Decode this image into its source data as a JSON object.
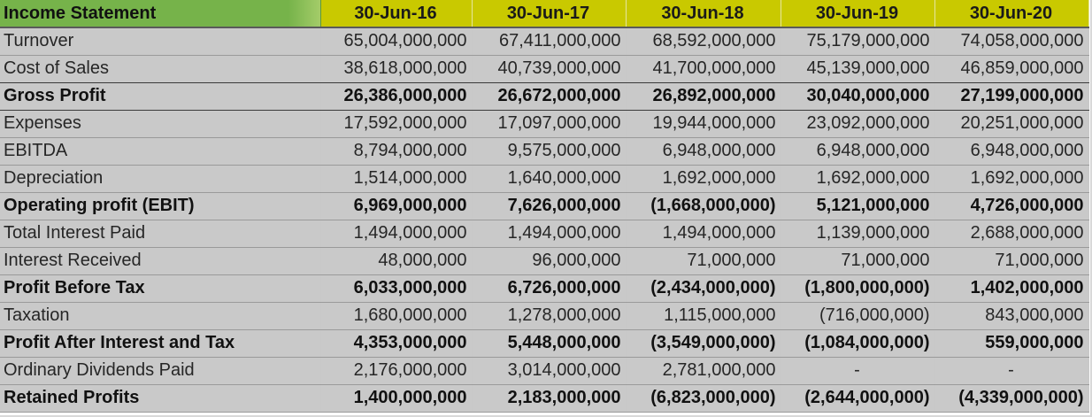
{
  "header": {
    "label": "Income Statement",
    "periods": [
      "30-Jun-16",
      "30-Jun-17",
      "30-Jun-18",
      "30-Jun-19",
      "30-Jun-20"
    ]
  },
  "rows": [
    {
      "label": "Turnover",
      "bold": false,
      "values": [
        "65,004,000,000",
        "67,411,000,000",
        "68,592,000,000",
        "75,179,000,000",
        "74,058,000,000"
      ]
    },
    {
      "label": "Cost of Sales",
      "bold": false,
      "values": [
        "38,618,000,000",
        "40,739,000,000",
        "41,700,000,000",
        "45,139,000,000",
        "46,859,000,000"
      ]
    },
    {
      "label": "Gross Profit",
      "bold": true,
      "values": [
        "26,386,000,000",
        "26,672,000,000",
        "26,892,000,000",
        "30,040,000,000",
        "27,199,000,000"
      ]
    },
    {
      "label": "Expenses",
      "bold": false,
      "values": [
        "17,592,000,000",
        "17,097,000,000",
        "19,944,000,000",
        "23,092,000,000",
        "20,251,000,000"
      ]
    },
    {
      "label": "EBITDA",
      "bold": false,
      "values": [
        "8,794,000,000",
        "9,575,000,000",
        "6,948,000,000",
        "6,948,000,000",
        "6,948,000,000"
      ]
    },
    {
      "label": "Depreciation",
      "bold": false,
      "values": [
        "1,514,000,000",
        "1,640,000,000",
        "1,692,000,000",
        "1,692,000,000",
        "1,692,000,000"
      ]
    },
    {
      "label": "Operating profit (EBIT)",
      "bold": true,
      "values": [
        "6,969,000,000",
        "7,626,000,000",
        "(1,668,000,000)",
        "5,121,000,000",
        "4,726,000,000"
      ]
    },
    {
      "label": "Total Interest Paid",
      "bold": false,
      "values": [
        "1,494,000,000",
        "1,494,000,000",
        "1,494,000,000",
        "1,139,000,000",
        "2,688,000,000"
      ]
    },
    {
      "label": "Interest Received",
      "bold": false,
      "values": [
        "48,000,000",
        "96,000,000",
        "71,000,000",
        "71,000,000",
        "71,000,000"
      ]
    },
    {
      "label": "Profit Before Tax",
      "bold": true,
      "values": [
        "6,033,000,000",
        "6,726,000,000",
        "(2,434,000,000)",
        "(1,800,000,000)",
        "1,402,000,000"
      ]
    },
    {
      "label": "Taxation",
      "bold": false,
      "values": [
        "1,680,000,000",
        "1,278,000,000",
        "1,115,000,000",
        "(716,000,000)",
        "843,000,000"
      ]
    },
    {
      "label": "Profit After Interest and Tax",
      "bold": true,
      "values": [
        "4,353,000,000",
        "5,448,000,000",
        "(3,549,000,000)",
        "(1,084,000,000)",
        "559,000,000"
      ]
    },
    {
      "label": "Ordinary Dividends Paid",
      "bold": false,
      "values": [
        "2,176,000,000",
        "3,014,000,000",
        "2,781,000,000",
        "-",
        "-"
      ]
    },
    {
      "label": "Retained Profits",
      "bold": true,
      "values": [
        "1,400,000,000",
        "2,183,000,000",
        "(6,823,000,000)",
        "(2,644,000,000)",
        "(4,339,000,000)"
      ]
    }
  ]
}
